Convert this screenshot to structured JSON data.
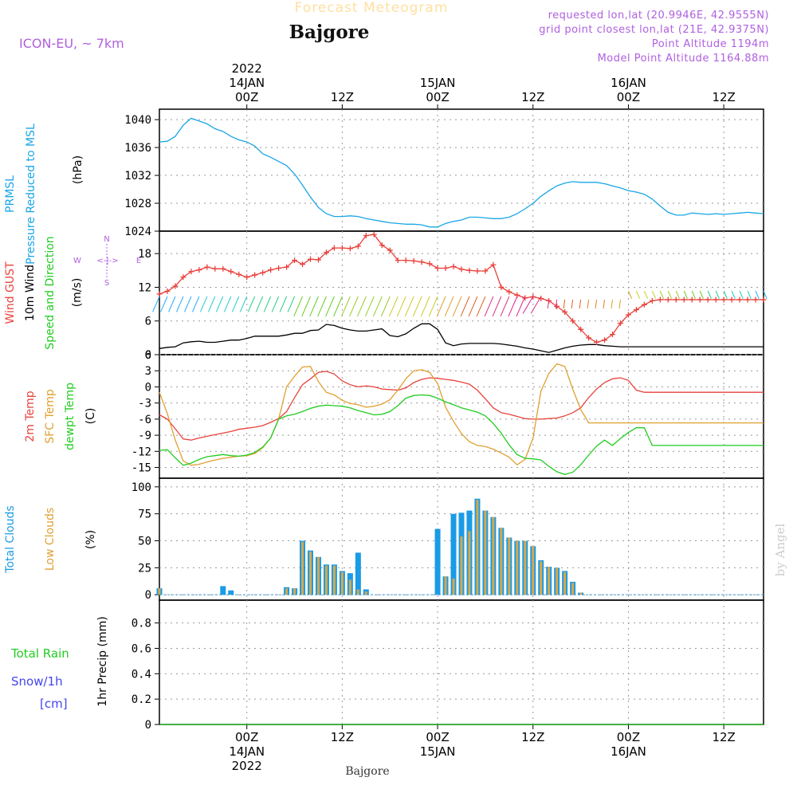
{
  "header": {
    "title": "Forecast Meteogram",
    "location": "Bajgore",
    "model": "ICON-EU, ~ 7km",
    "requested": "requested lon,lat (20.9946E, 42.9555N)",
    "grid": "grid point closest lon,lat (21E, 42.9375N)",
    "point_alt": "Point Altitude 1194m",
    "model_alt": "Model Point Altitude 1164.88m",
    "footer_location": "Bajgore",
    "watermark": "by Angel"
  },
  "time_axis": {
    "top_labels": [
      {
        "h": 24,
        "lines": [
          "2022",
          "14JAN",
          "00Z"
        ]
      },
      {
        "h": 36,
        "lines": [
          "12Z"
        ]
      },
      {
        "h": 48,
        "lines": [
          "15JAN",
          "00Z"
        ]
      },
      {
        "h": 60,
        "lines": [
          "12Z"
        ]
      },
      {
        "h": 72,
        "lines": [
          "16JAN",
          "00Z"
        ]
      },
      {
        "h": 84,
        "lines": [
          "12Z"
        ]
      }
    ],
    "bottom_labels": [
      {
        "h": 24,
        "lines": [
          "00Z",
          "14JAN",
          "2022"
        ]
      },
      {
        "h": 36,
        "lines": [
          "12Z"
        ]
      },
      {
        "h": 48,
        "lines": [
          "00Z",
          "15JAN"
        ]
      },
      {
        "h": 60,
        "lines": [
          "12Z"
        ]
      },
      {
        "h": 72,
        "lines": [
          "00Z",
          "16JAN"
        ]
      },
      {
        "h": 84,
        "lines": [
          "12Z"
        ]
      }
    ],
    "range_hours": [
      13,
      89
    ]
  },
  "colors": {
    "pressure": "#1aa6e6",
    "gust": "#e8423c",
    "wind": "#000000",
    "temp2m": "#e8423c",
    "sfc": "#e0a030",
    "dewpt": "#22cc22",
    "total_clouds": "#1a9be6",
    "low_clouds": "#d9a848",
    "snow": "#4444ee",
    "purple": "#b060e0"
  },
  "chart_data": [
    {
      "type": "line",
      "panel": "pressure",
      "side_labels": [
        "PRMSL",
        "Pressure Reduced to MSL"
      ],
      "unit": "(hPa)",
      "yticks": [
        "1024",
        "1028",
        "1032",
        "1036",
        "1040"
      ],
      "ylim": [
        1024,
        1041.5
      ],
      "x": [
        13,
        14,
        15,
        16,
        17,
        18,
        19,
        20,
        21,
        22,
        23,
        24,
        25,
        26,
        27,
        28,
        29,
        30,
        31,
        32,
        33,
        34,
        35,
        36,
        37,
        38,
        39,
        40,
        41,
        42,
        43,
        44,
        45,
        46,
        47,
        48,
        49,
        50,
        51,
        52,
        53,
        54,
        55,
        56,
        57,
        58,
        59,
        60,
        61,
        62,
        63,
        64,
        65,
        66,
        67,
        68,
        69,
        70,
        71,
        72,
        73,
        74,
        75,
        76,
        77,
        78,
        79,
        80,
        81,
        82,
        83,
        84,
        85,
        86,
        87,
        88,
        89
      ],
      "series": [
        {
          "values": [
            1036.8,
            1036.9,
            1037.6,
            1039.2,
            1040.2,
            1039.8,
            1039.4,
            1038.7,
            1038.3,
            1037.6,
            1037.1,
            1036.8,
            1036.2,
            1035.1,
            1034.6,
            1034.0,
            1033.4,
            1032.2,
            1030.6,
            1028.9,
            1027.4,
            1026.5,
            1026.1,
            1026.1,
            1026.2,
            1026.1,
            1025.8,
            1025.6,
            1025.4,
            1025.2,
            1025.1,
            1025.0,
            1025.0,
            1024.9,
            1024.6,
            1024.6,
            1025.1,
            1025.4,
            1025.6,
            1026.0,
            1026.0,
            1025.9,
            1025.8,
            1025.8,
            1026.0,
            1026.5,
            1027.2,
            1028.0,
            1029.0,
            1029.8,
            1030.5,
            1030.9,
            1031.1,
            1031.0,
            1031.0,
            1031.0,
            1030.8,
            1030.5,
            1030.2,
            1029.8,
            1029.6,
            1029.3,
            1028.6,
            1027.6,
            1026.7,
            1026.3,
            1026.3,
            1026.6,
            1026.5,
            1026.4,
            1026.5,
            1026.4,
            1026.5,
            1026.6,
            1026.7,
            1026.6,
            1026.5
          ]
        }
      ]
    },
    {
      "type": "line",
      "panel": "wind",
      "side_labels": [
        "Wind GUST",
        "10m Wind",
        "Speed and Direction"
      ],
      "unit": "(m/s)",
      "yticks": [
        "0",
        "6",
        "12",
        "18"
      ],
      "ylim": [
        0,
        22
      ],
      "compass": {
        "n": "N",
        "e": "E",
        "s": "S",
        "w": "W",
        "arrow": "<-|->"
      },
      "x": [
        13,
        14,
        15,
        16,
        17,
        18,
        19,
        20,
        21,
        22,
        23,
        24,
        25,
        26,
        27,
        28,
        29,
        30,
        31,
        32,
        33,
        34,
        35,
        36,
        37,
        38,
        39,
        40,
        41,
        42,
        43,
        44,
        45,
        46,
        47,
        48,
        49,
        50,
        51,
        52,
        53,
        54,
        55,
        56,
        57,
        58,
        59,
        60,
        61,
        62,
        63,
        64,
        65,
        66,
        67,
        68,
        69,
        70,
        71,
        72,
        73,
        74,
        75,
        76,
        77,
        78,
        79,
        80,
        81,
        82,
        83,
        84,
        85,
        86,
        87,
        88,
        89
      ],
      "series": [
        {
          "values": [
            10.8,
            11.3,
            12.2,
            13.8,
            14.8,
            15.1,
            15.6,
            15.3,
            15.3,
            14.8,
            14.3,
            13.8,
            14.2,
            14.6,
            15.1,
            15.4,
            15.6,
            16.8,
            16.1,
            17.0,
            16.9,
            18.2,
            19.0,
            19.0,
            18.9,
            19.3,
            21.2,
            21.4,
            19.5,
            18.6,
            16.8,
            16.8,
            16.7,
            16.5,
            16.2,
            15.4,
            15.4,
            15.7,
            15.2,
            15.0,
            14.9,
            14.9,
            16.0,
            12.0,
            11.2,
            10.6,
            10.1,
            10.3,
            10.0,
            9.6,
            8.6,
            7.6,
            6.0,
            4.5,
            3.0,
            2.2,
            2.6,
            3.6,
            5.6,
            7.1,
            8.0,
            8.9,
            9.6,
            9.8,
            9.8,
            9.8,
            9.8,
            9.8,
            9.8,
            9.8,
            9.8,
            9.8,
            9.8,
            9.8,
            9.8,
            9.8,
            9.8
          ]
        },
        {
          "values": [
            1.1,
            1.3,
            1.4,
            2.1,
            2.3,
            2.4,
            2.2,
            2.2,
            2.4,
            2.6,
            2.6,
            2.9,
            3.3,
            3.3,
            3.3,
            3.3,
            3.5,
            3.8,
            3.8,
            4.3,
            4.4,
            5.4,
            5.2,
            4.7,
            4.4,
            4.2,
            4.2,
            4.4,
            4.6,
            3.4,
            3.2,
            3.7,
            4.7,
            5.5,
            5.5,
            4.5,
            2.1,
            1.6,
            1.9,
            2.0,
            2.0,
            2.0,
            2.0,
            1.9,
            1.7,
            1.5,
            1.2,
            1.0,
            0.7,
            0.4,
            0.8,
            1.2,
            1.5,
            1.7,
            1.8,
            1.8,
            1.6,
            1.5,
            1.4,
            1.4,
            1.4,
            1.4,
            1.4,
            1.4,
            1.4,
            1.4,
            1.4,
            1.4,
            1.4,
            1.4,
            1.4,
            1.4,
            1.4,
            1.4,
            1.4,
            1.4,
            1.4
          ]
        }
      ]
    },
    {
      "type": "line",
      "panel": "temperature",
      "side_labels": [
        "2m Temp",
        "SFC Temp",
        "dewpt Temp"
      ],
      "unit": "(C)",
      "yticks": [
        "-15",
        "-12",
        "-9",
        "-6",
        "-3",
        "0",
        "3",
        "6"
      ],
      "ylim": [
        -17,
        6
      ],
      "x": [
        13,
        14,
        15,
        16,
        17,
        18,
        19,
        20,
        21,
        22,
        23,
        24,
        25,
        26,
        27,
        28,
        29,
        30,
        31,
        32,
        33,
        34,
        35,
        36,
        37,
        38,
        39,
        40,
        41,
        42,
        43,
        44,
        45,
        46,
        47,
        48,
        49,
        50,
        51,
        52,
        53,
        54,
        55,
        56,
        57,
        58,
        59,
        60,
        61,
        62,
        63,
        64,
        65,
        66,
        67,
        68,
        69,
        70,
        71,
        72,
        73,
        74,
        75,
        76,
        77,
        78,
        79,
        80,
        81,
        82,
        83,
        84,
        85,
        86,
        87,
        88,
        89
      ],
      "series": [
        {
          "values": [
            -5.2,
            -6.0,
            -7.8,
            -9.7,
            -9.9,
            -9.5,
            -9.2,
            -8.9,
            -8.6,
            -8.3,
            -7.9,
            -7.7,
            -7.5,
            -7.2,
            -6.6,
            -5.9,
            -4.6,
            -2.0,
            0.4,
            1.5,
            2.7,
            2.9,
            2.4,
            1.1,
            0.4,
            0.0,
            0.2,
            0.0,
            -0.4,
            -0.5,
            -0.6,
            -0.2,
            0.8,
            1.4,
            1.7,
            1.6,
            1.4,
            1.2,
            0.9,
            0.5,
            -0.6,
            -2.2,
            -3.9,
            -4.8,
            -5.1,
            -5.5,
            -5.9,
            -6.0,
            -6.0,
            -5.9,
            -5.8,
            -5.4,
            -4.8,
            -3.9,
            -2.0,
            -0.4,
            0.8,
            1.5,
            1.7,
            1.2,
            -0.6,
            -1.0,
            -1.0,
            -1.0,
            -1.0,
            -1.0,
            -1.0,
            -1.0,
            -1.0,
            -1.0,
            -1.0,
            -1.0,
            -1.0,
            -1.0,
            -1.0,
            -1.0,
            -1.0
          ]
        },
        {
          "values": [
            -1.0,
            -5.0,
            -9.9,
            -13.8,
            -14.6,
            -14.4,
            -14.0,
            -13.6,
            -13.3,
            -13.1,
            -12.9,
            -12.8,
            -12.4,
            -11.3,
            -9.5,
            -6.0,
            0.0,
            2.0,
            3.7,
            3.8,
            1.0,
            -1.0,
            -1.5,
            -2.5,
            -3.1,
            -3.3,
            -3.8,
            -3.6,
            -3.2,
            -2.4,
            -0.6,
            1.5,
            3.0,
            3.2,
            2.7,
            0.6,
            -3.8,
            -6.4,
            -8.7,
            -10.2,
            -10.9,
            -11.1,
            -11.6,
            -12.3,
            -13.1,
            -14.5,
            -13.5,
            -9.5,
            -0.8,
            2.5,
            4.3,
            3.8,
            -0.4,
            -4.2,
            -6.7,
            -6.7,
            -6.7,
            -6.7,
            -6.7,
            -6.7,
            -6.7,
            -6.7,
            -6.7,
            -6.7,
            -6.7,
            -6.7,
            -6.7,
            -6.7,
            -6.7,
            -6.7,
            -6.7,
            -6.7,
            -6.7,
            -6.7,
            -6.7,
            -6.7,
            -6.7
          ]
        },
        {
          "values": [
            -11.8,
            -11.7,
            -13.2,
            -14.6,
            -14.2,
            -13.5,
            -13.0,
            -12.8,
            -12.6,
            -12.8,
            -12.9,
            -12.7,
            -12.2,
            -11.2,
            -9.5,
            -6.0,
            -5.4,
            -5.1,
            -4.6,
            -4.0,
            -3.6,
            -3.4,
            -3.5,
            -3.6,
            -3.9,
            -4.4,
            -4.8,
            -5.2,
            -5.1,
            -4.6,
            -3.5,
            -2.1,
            -1.6,
            -1.5,
            -1.6,
            -2.1,
            -2.8,
            -3.3,
            -3.9,
            -4.3,
            -4.7,
            -5.4,
            -6.8,
            -8.6,
            -10.8,
            -12.6,
            -13.3,
            -13.4,
            -13.6,
            -14.8,
            -15.8,
            -16.3,
            -15.9,
            -14.5,
            -12.7,
            -11.0,
            -9.9,
            -10.9,
            -9.6,
            -8.5,
            -7.6,
            -7.6,
            -10.9,
            -10.9,
            -10.9,
            -10.9,
            -10.9,
            -10.9,
            -10.9,
            -10.9,
            -10.9,
            -10.9,
            -10.9,
            -10.9,
            -10.9,
            -10.9,
            -10.9
          ]
        }
      ]
    },
    {
      "type": "bar",
      "panel": "clouds",
      "side_labels": [
        "Total Clouds",
        "Low Clouds"
      ],
      "unit": "(%)",
      "yticks": [
        "0",
        "25",
        "50",
        "75",
        "100"
      ],
      "ylim": [
        -5,
        108
      ],
      "x": [
        13,
        14,
        15,
        16,
        17,
        18,
        19,
        20,
        21,
        22,
        23,
        24,
        25,
        26,
        27,
        28,
        29,
        30,
        31,
        32,
        33,
        34,
        35,
        36,
        37,
        38,
        39,
        40,
        41,
        42,
        43,
        44,
        45,
        46,
        47,
        48,
        49,
        50,
        51,
        52,
        53,
        54,
        55,
        56,
        57,
        58,
        59,
        60,
        61,
        62,
        63,
        64,
        65,
        66,
        67,
        68,
        69,
        70,
        71,
        72,
        73,
        74,
        75,
        76,
        77,
        78,
        79,
        80,
        81,
        82,
        83,
        84,
        85,
        86,
        87,
        88,
        89
      ],
      "series": [
        {
          "values": [
            6,
            0,
            0,
            0,
            0,
            0,
            0,
            0,
            8,
            4,
            0,
            0,
            0,
            0,
            0,
            0,
            7,
            6,
            50,
            41,
            35,
            28,
            28,
            22,
            20,
            39,
            5,
            0,
            0,
            0,
            0,
            0,
            0,
            0,
            0,
            61,
            17,
            75,
            76,
            78,
            89,
            78,
            72,
            62,
            53,
            50,
            50,
            45,
            32,
            26,
            25,
            22,
            12,
            2,
            0,
            0,
            0,
            0,
            0,
            0,
            0,
            0,
            0,
            0,
            0,
            0,
            0,
            0,
            0,
            0,
            0,
            0,
            0,
            0,
            0,
            0,
            0
          ]
        },
        {
          "values": [
            6,
            0,
            0,
            0,
            0,
            0,
            0,
            0,
            0,
            0,
            0,
            0,
            0,
            0,
            0,
            0,
            6,
            6,
            49,
            40,
            35,
            27,
            27,
            21,
            14,
            5,
            3,
            0,
            0,
            0,
            0,
            0,
            0,
            0,
            0,
            0,
            17,
            15,
            54,
            59,
            88,
            78,
            72,
            62,
            53,
            50,
            50,
            45,
            31,
            26,
            25,
            21,
            11,
            2,
            0,
            0,
            0,
            0,
            0,
            0,
            0,
            0,
            0,
            0,
            0,
            0,
            0,
            0,
            0,
            0,
            0,
            0,
            0,
            0,
            0,
            0,
            0
          ]
        }
      ]
    },
    {
      "type": "line",
      "panel": "precip",
      "side_labels": [
        "Total Rain",
        "Snow/1h",
        "[cm]"
      ],
      "unit": "1hr Precip (mm)",
      "yticks": [
        "0",
        "0.2",
        "0.4",
        "0.6",
        "0.8"
      ],
      "ylim": [
        0,
        0.98
      ],
      "x": [
        13,
        89
      ],
      "series": [
        {
          "values": [
            0,
            0
          ]
        }
      ]
    }
  ]
}
